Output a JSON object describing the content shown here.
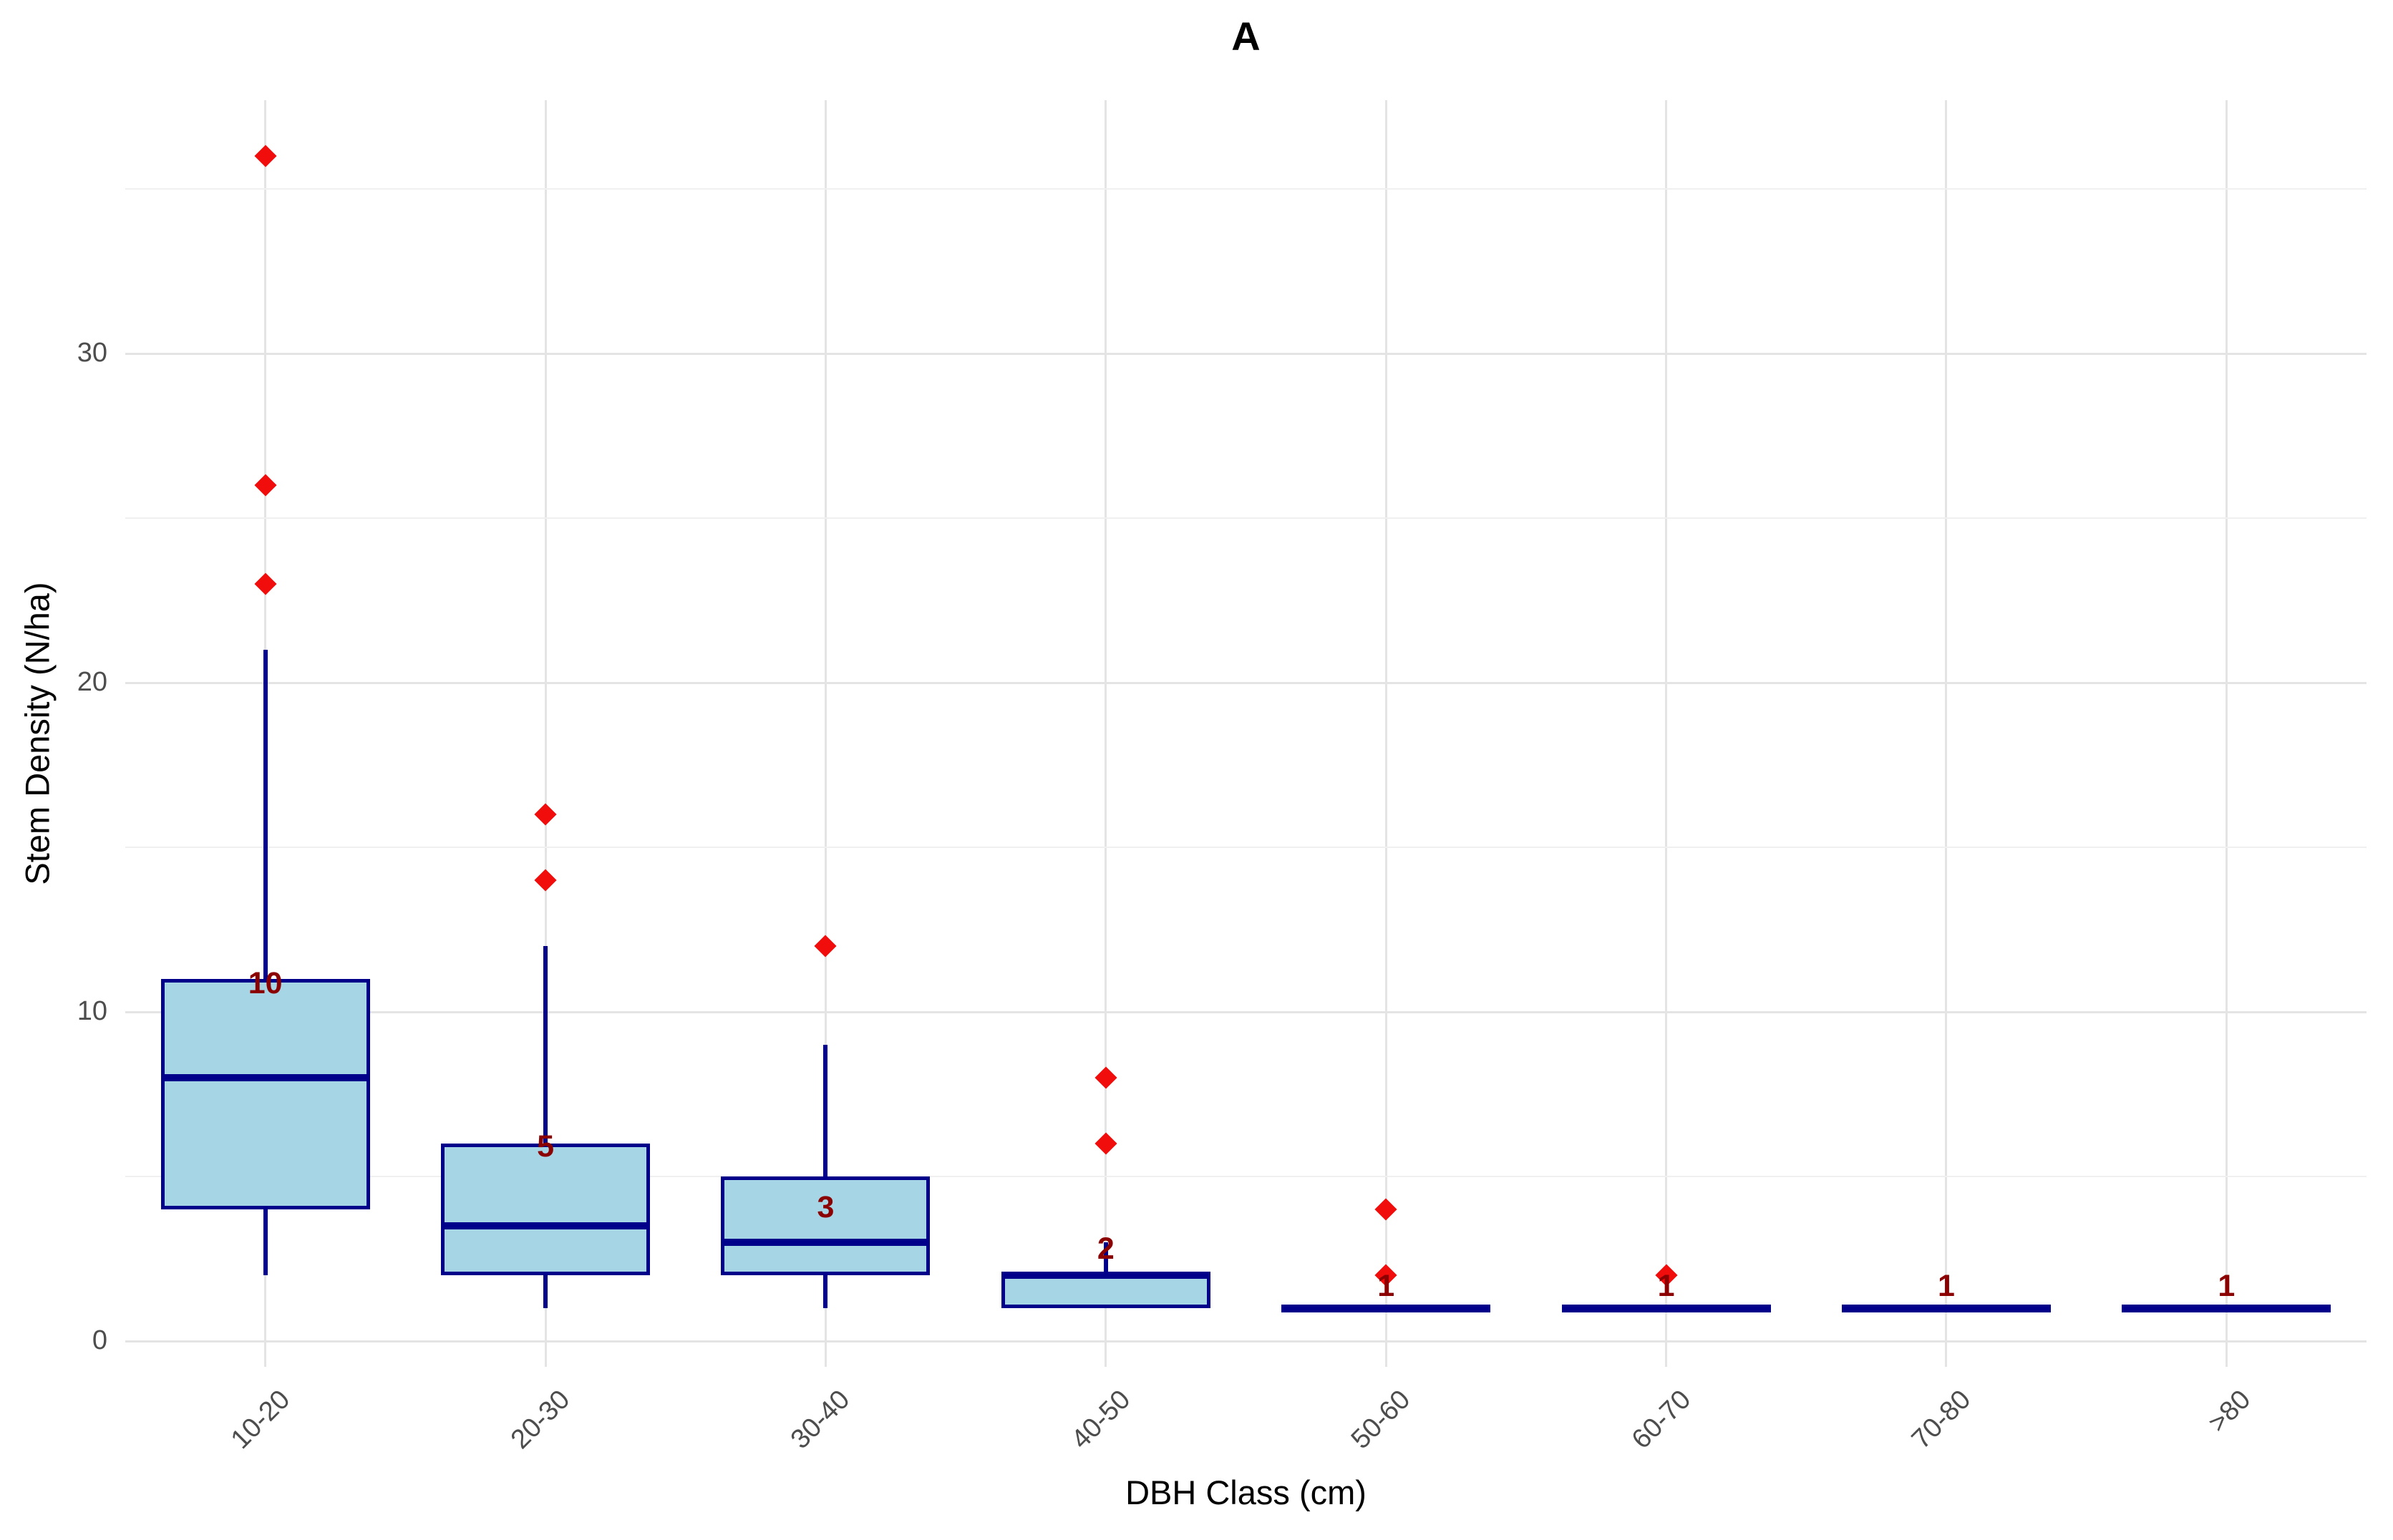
{
  "title": "A",
  "axes": {
    "y_tick_labels": [
      "0",
      "10",
      "20",
      "30"
    ],
    "y_major_breaks": [
      0,
      10,
      20,
      30
    ],
    "y_minor_breaks": [
      5,
      15,
      25,
      35
    ],
    "y_top_value": 37.7
  },
  "chart_data": {
    "type": "boxplot",
    "title": "A",
    "xlabel": "DBH Class (cm)",
    "ylabel": "Stem Density (N/ha)",
    "ylim": [
      0,
      37.7
    ],
    "grid": "major horizontal 0/10/20/30, minor 5/15/25/35, vertical at each category",
    "legend": "none",
    "categories": [
      "10-20",
      "20-30",
      "30-40",
      "40-50",
      "50-60",
      "60-70",
      "70-80",
      ">80"
    ],
    "series": [
      {
        "category": "10-20",
        "whisker_low": 2,
        "q1": 4,
        "median": 8,
        "q3": 11,
        "whisker_high": 21,
        "outliers": [
          23,
          26,
          36
        ],
        "count_label": "10",
        "label_y": 10.8
      },
      {
        "category": "20-30",
        "whisker_low": 1,
        "q1": 2,
        "median": 3.5,
        "q3": 6,
        "whisker_high": 12,
        "outliers": [
          14,
          16
        ],
        "count_label": "5",
        "label_y": 5.85
      },
      {
        "category": "30-40",
        "whisker_low": 1,
        "q1": 2,
        "median": 3,
        "q3": 5,
        "whisker_high": 9,
        "outliers": [
          12
        ],
        "count_label": "3",
        "label_y": 4.0
      },
      {
        "category": "40-50",
        "whisker_low": 1,
        "q1": 1,
        "median": 2,
        "q3": 2,
        "whisker_high": 3,
        "outliers": [
          6,
          8
        ],
        "count_label": "2",
        "label_y": 2.75
      },
      {
        "category": "50-60",
        "whisker_low": 1,
        "q1": 1,
        "median": 1,
        "q3": 1,
        "whisker_high": 1,
        "outliers": [
          2,
          4
        ],
        "count_label": "1",
        "label_y": 1.6
      },
      {
        "category": "60-70",
        "whisker_low": 1,
        "q1": 1,
        "median": 1,
        "q3": 1,
        "whisker_high": 1,
        "outliers": [
          2
        ],
        "count_label": "1",
        "label_y": 1.6
      },
      {
        "category": "70-80",
        "whisker_low": 1,
        "q1": 1,
        "median": 1,
        "q3": 1,
        "whisker_high": 1,
        "outliers": [],
        "count_label": "1",
        "label_y": 1.6
      },
      {
        "category": ">80",
        "whisker_low": 1,
        "q1": 1,
        "median": 1,
        "q3": 1,
        "whisker_high": 1,
        "outliers": [],
        "count_label": "1",
        "label_y": 1.6
      }
    ]
  },
  "colors": {
    "box_fill": "#A6D5E6",
    "box_border": "#00008B",
    "median": "#00008B",
    "whisker": "#00008B",
    "outlier": "#F20D0D",
    "count_label": "#8B0000",
    "grid_major": "#E4E4E4",
    "grid_minor": "#F0F0F0",
    "tick_text": "#4d4d4d",
    "axis_title_text": "#000000"
  }
}
